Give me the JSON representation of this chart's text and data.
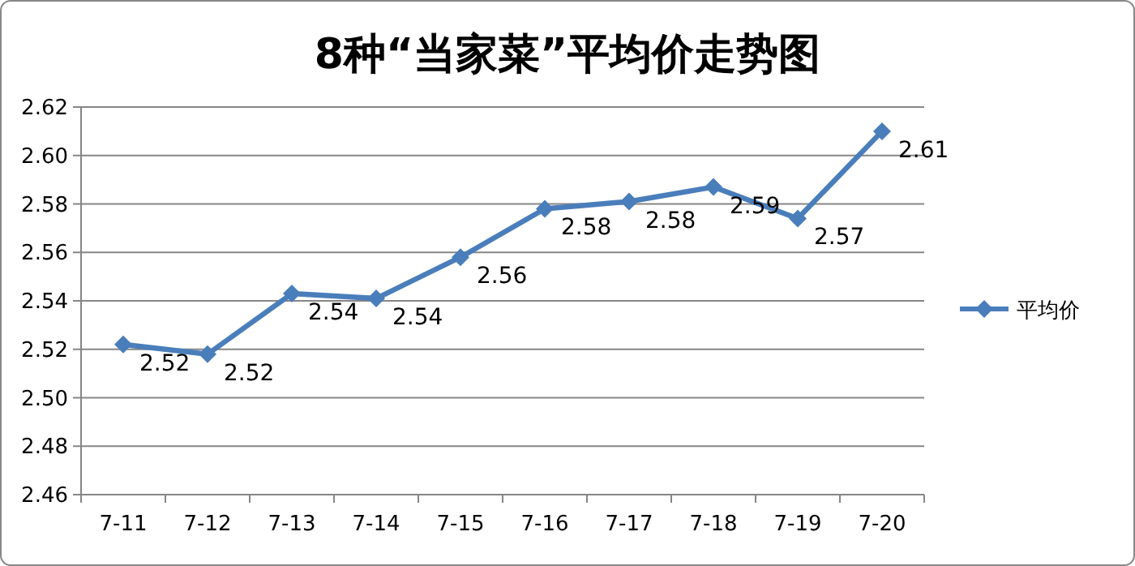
{
  "chart_data": {
    "type": "line",
    "title": "8种“当家菜”平均价走势图",
    "categories": [
      "7-11",
      "7-12",
      "7-13",
      "7-14",
      "7-15",
      "7-16",
      "7-17",
      "7-18",
      "7-19",
      "7-20"
    ],
    "series": [
      {
        "name": "平均价",
        "color": "#4a7ebb",
        "values": [
          2.522,
          2.518,
          2.543,
          2.541,
          2.558,
          2.578,
          2.581,
          2.587,
          2.574,
          2.61
        ],
        "value_labels": [
          "2.52",
          "2.52",
          "2.54",
          "2.54",
          "2.56",
          "2.58",
          "2.58",
          "2.59",
          "2.57",
          "2.61"
        ]
      }
    ],
    "ylim": [
      2.46,
      2.62
    ],
    "yticks": [
      2.46,
      2.48,
      {
        "value": 2.5,
        "label": "2.50"
      },
      2.52,
      2.54,
      2.56,
      2.58,
      {
        "value": 2.6,
        "label": "2.60"
      },
      2.62
    ],
    "grid": "y",
    "legend": "right",
    "marker": "diamond",
    "line_style": "solid"
  }
}
